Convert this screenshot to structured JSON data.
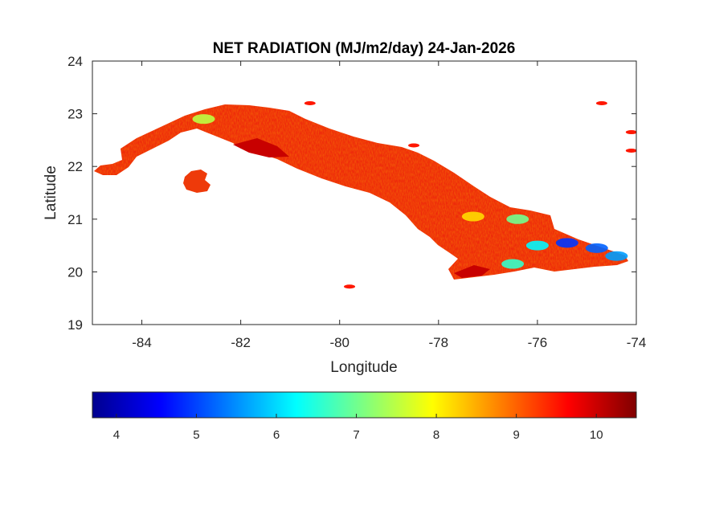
{
  "chart_data": {
    "type": "heatmap",
    "title": "NET RADIATION (MJ/m2/day) 24-Jan-2026",
    "xlabel": "Longitude",
    "ylabel": "Latitude",
    "xlim": [
      -85,
      -74
    ],
    "ylim": [
      19,
      24
    ],
    "xticks": [
      -84,
      -82,
      -80,
      -78,
      -76,
      -74
    ],
    "yticks": [
      19,
      20,
      21,
      22,
      23,
      24
    ],
    "grid": false,
    "colorbar": {
      "orientation": "horizontal",
      "placement": "bottom",
      "colormap": "jet",
      "range": [
        3.7,
        10.5
      ],
      "ticks": [
        4,
        5,
        6,
        7,
        8,
        9,
        10
      ]
    },
    "regions": [
      {
        "name": "",
        "lon": [
          -84.95,
          -84.3,
          -83.2,
          -82.4,
          -81.6,
          -80.6,
          -79.6,
          -78.6,
          -77.6,
          -76.6,
          -75.6,
          -74.7,
          -74.2
        ],
        "lat": [
          21.9,
          22.05,
          22.7,
          22.95,
          23.0,
          22.85,
          22.55,
          22.15,
          21.6,
          21.05,
          20.8,
          20.45,
          20.25
        ],
        "value": 9.6
      },
      {
        "name": "",
        "lon": [
          -83.1,
          -82.6
        ],
        "lat": [
          21.75,
          21.55
        ],
        "value": 9.4
      }
    ],
    "hotspots": [
      {
        "lon": -75.4,
        "lat": 20.55,
        "value": 4.9
      },
      {
        "lon": -74.8,
        "lat": 20.45,
        "value": 5.2
      },
      {
        "lon": -74.4,
        "lat": 20.3,
        "value": 5.6
      },
      {
        "lon": -76.0,
        "lat": 20.5,
        "value": 6.2
      },
      {
        "lon": -76.4,
        "lat": 21.0,
        "value": 7.0
      },
      {
        "lon": -76.5,
        "lat": 20.15,
        "value": 6.6
      },
      {
        "lon": -82.75,
        "lat": 22.9,
        "value": 7.5
      },
      {
        "lon": -77.3,
        "lat": 21.05,
        "value": 8.2
      }
    ],
    "islets": [
      {
        "lon": -74.7,
        "lat": 23.2,
        "value": 9.5
      },
      {
        "lon": -74.1,
        "lat": 22.65,
        "value": 9.5
      },
      {
        "lon": -74.1,
        "lat": 22.3,
        "value": 9.5
      },
      {
        "lon": -79.8,
        "lat": 19.72,
        "value": 9.5
      },
      {
        "lon": -80.6,
        "lat": 23.2,
        "value": 9.5
      },
      {
        "lon": -78.5,
        "lat": 22.4,
        "value": 9.5
      }
    ]
  }
}
